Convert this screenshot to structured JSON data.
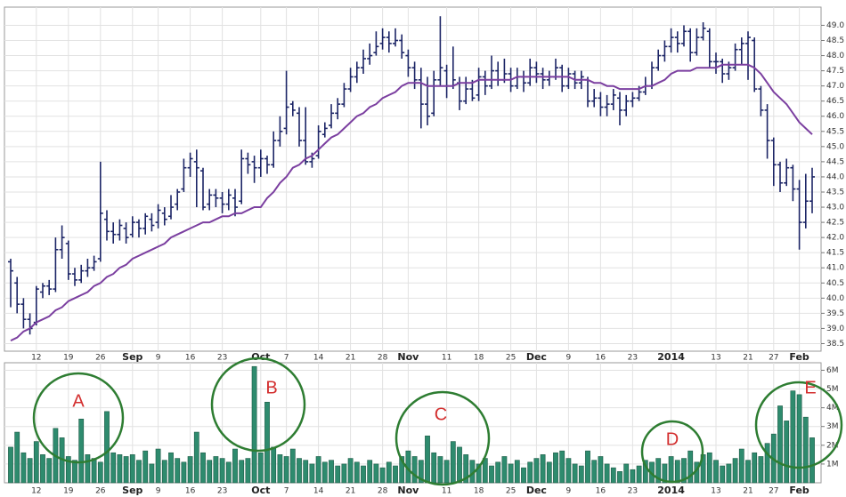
{
  "chart_data": [
    {
      "type": "ohlc",
      "color": "#1c2566",
      "categories": [
        null,
        null,
        null,
        null,
        "12",
        null,
        null,
        null,
        null,
        "19",
        null,
        null,
        null,
        null,
        "26",
        null,
        null,
        null,
        null,
        "Sep",
        null,
        null,
        null,
        "9",
        null,
        null,
        null,
        null,
        "16",
        null,
        null,
        null,
        null,
        "23",
        null,
        null,
        null,
        null,
        null,
        "Oct",
        null,
        null,
        null,
        "7",
        null,
        null,
        null,
        null,
        "14",
        null,
        null,
        null,
        null,
        "21",
        null,
        null,
        null,
        null,
        "28",
        null,
        null,
        null,
        "Nov",
        null,
        null,
        null,
        null,
        null,
        "11",
        null,
        null,
        null,
        null,
        "18",
        null,
        null,
        null,
        null,
        "25",
        null,
        null,
        null,
        "Dec",
        null,
        null,
        null,
        null,
        "9",
        null,
        null,
        null,
        null,
        "16",
        null,
        null,
        null,
        null,
        "23",
        null,
        null,
        null,
        null,
        null,
        "2014",
        null,
        null,
        null,
        null,
        null,
        null,
        "13",
        null,
        null,
        null,
        null,
        "21",
        null,
        null,
        null,
        "27",
        null,
        null,
        null,
        "Feb",
        null,
        null
      ],
      "ohlc": [
        [
          41.2,
          41.3,
          39.7,
          40.9
        ],
        [
          40.5,
          40.7,
          39.5,
          39.8
        ],
        [
          39.8,
          40.0,
          39.0,
          39.3
        ],
        [
          39.3,
          39.5,
          38.8,
          39.0
        ],
        [
          39.2,
          40.4,
          39.1,
          40.3
        ],
        [
          40.2,
          40.5,
          40.0,
          40.4
        ],
        [
          40.4,
          40.6,
          40.1,
          40.3
        ],
        [
          40.3,
          42.0,
          40.2,
          41.6
        ],
        [
          41.6,
          42.4,
          41.3,
          42.0
        ],
        [
          41.8,
          41.9,
          40.6,
          40.8
        ],
        [
          40.8,
          41.0,
          40.4,
          40.6
        ],
        [
          40.6,
          41.1,
          40.5,
          40.9
        ],
        [
          40.9,
          41.3,
          40.7,
          41.0
        ],
        [
          41.0,
          41.4,
          40.9,
          41.2
        ],
        [
          41.3,
          44.5,
          41.2,
          42.8
        ],
        [
          42.6,
          42.9,
          41.9,
          42.2
        ],
        [
          42.2,
          42.5,
          41.8,
          42.1
        ],
        [
          42.1,
          42.6,
          41.9,
          42.4
        ],
        [
          42.3,
          42.5,
          41.8,
          42.0
        ],
        [
          42.1,
          42.7,
          42.0,
          42.5
        ],
        [
          42.5,
          42.6,
          42.0,
          42.3
        ],
        [
          42.3,
          42.8,
          42.1,
          42.7
        ],
        [
          42.6,
          42.8,
          42.2,
          42.4
        ],
        [
          42.5,
          43.1,
          42.3,
          42.9
        ],
        [
          42.8,
          43.0,
          42.4,
          42.6
        ],
        [
          42.7,
          43.4,
          42.6,
          43.0
        ],
        [
          43.1,
          43.6,
          42.9,
          43.5
        ],
        [
          43.6,
          44.6,
          43.5,
          44.3
        ],
        [
          44.3,
          44.8,
          44.0,
          44.6
        ],
        [
          44.5,
          44.9,
          43.0,
          44.3
        ],
        [
          44.2,
          44.3,
          42.9,
          43.0
        ],
        [
          43.1,
          43.6,
          42.9,
          43.4
        ],
        [
          43.4,
          43.6,
          43.0,
          43.3
        ],
        [
          43.3,
          43.5,
          42.8,
          43.1
        ],
        [
          43.1,
          43.6,
          42.9,
          43.4
        ],
        [
          43.3,
          43.6,
          42.7,
          43.0
        ],
        [
          43.2,
          44.9,
          43.1,
          44.6
        ],
        [
          44.6,
          44.8,
          44.1,
          44.4
        ],
        [
          44.5,
          44.7,
          43.8,
          44.3
        ],
        [
          44.3,
          44.9,
          44.0,
          44.6
        ],
        [
          44.6,
          44.7,
          44.1,
          44.4
        ],
        [
          44.4,
          45.5,
          44.3,
          45.2
        ],
        [
          45.2,
          46.0,
          45.0,
          45.5
        ],
        [
          45.6,
          47.5,
          45.4,
          46.3
        ],
        [
          46.4,
          46.5,
          46.0,
          46.2
        ],
        [
          46.1,
          46.3,
          45.0,
          45.2
        ],
        [
          45.2,
          46.3,
          44.4,
          44.5
        ],
        [
          44.5,
          44.8,
          44.3,
          44.6
        ],
        [
          44.7,
          45.7,
          44.6,
          45.5
        ],
        [
          45.4,
          45.8,
          45.3,
          45.6
        ],
        [
          45.7,
          46.4,
          45.6,
          46.1
        ],
        [
          46.1,
          46.6,
          45.9,
          46.4
        ],
        [
          46.4,
          47.1,
          46.3,
          46.9
        ],
        [
          46.9,
          47.6,
          46.8,
          47.3
        ],
        [
          47.3,
          47.8,
          47.1,
          47.6
        ],
        [
          47.6,
          48.2,
          47.4,
          47.9
        ],
        [
          47.9,
          48.4,
          47.7,
          48.0
        ],
        [
          48.1,
          48.8,
          48.0,
          48.3
        ],
        [
          48.4,
          48.9,
          48.2,
          48.6
        ],
        [
          48.6,
          48.8,
          48.1,
          48.4
        ],
        [
          48.4,
          48.9,
          48.3,
          48.5
        ],
        [
          48.5,
          48.7,
          47.9,
          48.1
        ],
        [
          48.0,
          48.2,
          47.3,
          47.6
        ],
        [
          47.6,
          47.8,
          46.9,
          47.2
        ],
        [
          47.2,
          47.6,
          45.6,
          46.4
        ],
        [
          46.4,
          47.3,
          45.7,
          46.0
        ],
        [
          46.1,
          47.5,
          46.0,
          47.2
        ],
        [
          47.2,
          49.3,
          47.0,
          47.6
        ],
        [
          47.5,
          47.7,
          46.6,
          47.0
        ],
        [
          47.0,
          48.3,
          46.9,
          47.2
        ],
        [
          47.1,
          47.3,
          46.2,
          46.5
        ],
        [
          46.5,
          47.3,
          46.4,
          46.9
        ],
        [
          46.9,
          47.2,
          46.5,
          46.6
        ],
        [
          46.7,
          47.6,
          46.5,
          47.3
        ],
        [
          47.3,
          47.5,
          46.7,
          47.0
        ],
        [
          47.0,
          48.0,
          46.9,
          47.5
        ],
        [
          47.5,
          47.8,
          47.0,
          47.2
        ],
        [
          47.2,
          47.9,
          47.1,
          47.4
        ],
        [
          47.4,
          47.6,
          46.8,
          47.0
        ],
        [
          47.0,
          47.6,
          46.9,
          47.3
        ],
        [
          47.3,
          47.5,
          46.8,
          47.1
        ],
        [
          47.1,
          47.9,
          47.0,
          47.6
        ],
        [
          47.6,
          47.8,
          47.1,
          47.4
        ],
        [
          47.4,
          47.6,
          46.9,
          47.2
        ],
        [
          47.2,
          47.5,
          47.0,
          47.3
        ],
        [
          47.3,
          47.9,
          47.2,
          47.6
        ],
        [
          47.6,
          47.7,
          46.8,
          47.0
        ],
        [
          47.0,
          47.6,
          46.9,
          47.4
        ],
        [
          47.4,
          47.5,
          46.9,
          47.1
        ],
        [
          47.1,
          47.5,
          46.9,
          47.3
        ],
        [
          47.2,
          47.3,
          46.3,
          46.5
        ],
        [
          46.5,
          46.9,
          46.3,
          46.6
        ],
        [
          46.6,
          46.8,
          46.0,
          46.3
        ],
        [
          46.3,
          46.7,
          46.0,
          46.4
        ],
        [
          46.4,
          46.9,
          46.2,
          46.7
        ],
        [
          46.6,
          46.8,
          45.7,
          46.2
        ],
        [
          46.2,
          46.7,
          46.0,
          46.5
        ],
        [
          46.5,
          46.8,
          46.3,
          46.6
        ],
        [
          46.6,
          47.0,
          46.5,
          46.8
        ],
        [
          46.8,
          47.3,
          46.7,
          47.0
        ],
        [
          47.0,
          47.8,
          46.9,
          47.6
        ],
        [
          47.6,
          48.2,
          47.5,
          48.0
        ],
        [
          48.0,
          48.5,
          47.8,
          48.3
        ],
        [
          48.3,
          48.9,
          48.1,
          48.6
        ],
        [
          48.6,
          48.8,
          48.1,
          48.4
        ],
        [
          48.4,
          49.0,
          48.3,
          48.8
        ],
        [
          48.8,
          48.9,
          47.8,
          48.1
        ],
        [
          48.1,
          48.9,
          48.0,
          48.6
        ],
        [
          48.6,
          49.1,
          48.5,
          48.9
        ],
        [
          48.8,
          48.9,
          47.6,
          47.8
        ],
        [
          47.8,
          48.1,
          47.4,
          47.8
        ],
        [
          47.8,
          47.9,
          47.1,
          47.4
        ],
        [
          47.4,
          47.8,
          47.2,
          47.6
        ],
        [
          47.6,
          48.4,
          47.5,
          48.2
        ],
        [
          48.2,
          48.6,
          47.7,
          48.4
        ],
        [
          48.4,
          48.8,
          47.2,
          48.6
        ],
        [
          48.5,
          48.6,
          46.8,
          46.9
        ],
        [
          46.9,
          47.0,
          46.0,
          46.2
        ],
        [
          46.2,
          46.4,
          44.6,
          45.2
        ],
        [
          45.2,
          45.3,
          43.7,
          44.4
        ],
        [
          44.4,
          44.5,
          43.5,
          43.8
        ],
        [
          43.8,
          44.6,
          43.7,
          44.3
        ],
        [
          44.3,
          44.4,
          43.2,
          43.6
        ],
        [
          43.6,
          43.9,
          41.6,
          42.5
        ],
        [
          42.5,
          44.1,
          42.3,
          43.2
        ],
        [
          43.2,
          44.3,
          42.8,
          44.0
        ]
      ],
      "moving_average": {
        "color": "#7b3fa0",
        "values": [
          38.6,
          38.7,
          38.9,
          39.0,
          39.2,
          39.3,
          39.4,
          39.6,
          39.7,
          39.9,
          40.0,
          40.1,
          40.2,
          40.4,
          40.5,
          40.7,
          40.8,
          41.0,
          41.1,
          41.3,
          41.4,
          41.5,
          41.6,
          41.7,
          41.8,
          42.0,
          42.1,
          42.2,
          42.3,
          42.4,
          42.5,
          42.5,
          42.6,
          42.7,
          42.7,
          42.8,
          42.8,
          42.9,
          43.0,
          43.0,
          43.3,
          43.5,
          43.8,
          44.0,
          44.3,
          44.4,
          44.6,
          44.7,
          44.9,
          45.1,
          45.3,
          45.4,
          45.6,
          45.8,
          46.0,
          46.1,
          46.3,
          46.4,
          46.6,
          46.7,
          46.8,
          47.0,
          47.1,
          47.1,
          47.1,
          47.0,
          47.0,
          47.0,
          47.0,
          47.0,
          47.1,
          47.1,
          47.1,
          47.2,
          47.2,
          47.2,
          47.2,
          47.2,
          47.2,
          47.3,
          47.3,
          47.3,
          47.3,
          47.3,
          47.3,
          47.3,
          47.3,
          47.3,
          47.2,
          47.2,
          47.2,
          47.1,
          47.1,
          47.0,
          47.0,
          46.9,
          46.9,
          46.9,
          46.9,
          47.0,
          47.0,
          47.1,
          47.2,
          47.4,
          47.5,
          47.5,
          47.5,
          47.6,
          47.6,
          47.6,
          47.6,
          47.7,
          47.7,
          47.7,
          47.7,
          47.7,
          47.6,
          47.4,
          47.1,
          46.8,
          46.6,
          46.4,
          46.1,
          45.8,
          45.6,
          45.4
        ]
      },
      "ylim": [
        38.25,
        49.6
      ],
      "yticks": [
        38.5,
        {
          "value": 39,
          "label": "39.0"
        },
        39.5,
        {
          "value": 40,
          "label": "40.0"
        },
        40.5,
        {
          "value": 41,
          "label": "41.0"
        },
        41.5,
        {
          "value": 42,
          "label": "42.0"
        },
        42.5,
        {
          "value": 43,
          "label": "43.0"
        },
        43.5,
        {
          "value": 44,
          "label": "44.0"
        },
        44.5,
        {
          "value": 45,
          "label": "45.0"
        },
        45.5,
        {
          "value": 46,
          "label": "46.0"
        },
        46.5,
        {
          "value": 47,
          "label": "47.0"
        },
        47.5,
        {
          "value": 48,
          "label": "48.0"
        },
        48.5,
        {
          "value": 49,
          "label": "49.0"
        }
      ],
      "grid": true
    },
    {
      "type": "bar",
      "color": "#2e8b6e",
      "categories": [
        null,
        null,
        null,
        null,
        "12",
        null,
        null,
        null,
        null,
        "19",
        null,
        null,
        null,
        null,
        "26",
        null,
        null,
        null,
        null,
        "Sep",
        null,
        null,
        null,
        "9",
        null,
        null,
        null,
        null,
        "16",
        null,
        null,
        null,
        null,
        "23",
        null,
        null,
        null,
        null,
        null,
        "Oct",
        null,
        null,
        null,
        "7",
        null,
        null,
        null,
        null,
        "14",
        null,
        null,
        null,
        null,
        "21",
        null,
        null,
        null,
        null,
        "28",
        null,
        null,
        null,
        "Nov",
        null,
        null,
        null,
        null,
        null,
        "11",
        null,
        null,
        null,
        null,
        "18",
        null,
        null,
        null,
        null,
        "25",
        null,
        null,
        null,
        "Dec",
        null,
        null,
        null,
        null,
        "9",
        null,
        null,
        null,
        null,
        "16",
        null,
        null,
        null,
        null,
        "23",
        null,
        null,
        null,
        null,
        null,
        "2014",
        null,
        null,
        null,
        null,
        null,
        null,
        "13",
        null,
        null,
        null,
        null,
        "21",
        null,
        null,
        null,
        "27",
        null,
        null,
        null,
        "Feb",
        null,
        null
      ],
      "values": [
        1.9,
        2.7,
        1.6,
        1.3,
        2.2,
        1.5,
        1.3,
        2.9,
        2.4,
        1.4,
        1.2,
        3.4,
        1.5,
        1.3,
        1.1,
        3.8,
        1.6,
        1.5,
        1.4,
        1.5,
        1.2,
        1.7,
        1.0,
        1.8,
        1.2,
        1.6,
        1.3,
        1.1,
        1.4,
        2.7,
        1.6,
        1.2,
        1.4,
        1.3,
        1.1,
        1.8,
        1.2,
        1.3,
        6.2,
        1.6,
        4.3,
        1.9,
        1.5,
        1.4,
        1.8,
        1.3,
        1.2,
        1.0,
        1.4,
        1.1,
        1.2,
        0.9,
        1.0,
        1.3,
        1.1,
        0.9,
        1.2,
        1.0,
        0.8,
        1.1,
        0.9,
        1.4,
        1.7,
        1.4,
        1.2,
        2.5,
        1.6,
        1.4,
        1.2,
        2.2,
        1.9,
        1.5,
        1.2,
        1.0,
        1.3,
        0.9,
        1.1,
        1.4,
        1.0,
        1.2,
        0.8,
        1.1,
        1.3,
        1.5,
        1.1,
        1.6,
        1.7,
        1.3,
        1.0,
        0.9,
        1.7,
        1.2,
        1.4,
        1.0,
        0.8,
        0.6,
        1.0,
        0.7,
        0.9,
        1.2,
        1.1,
        1.3,
        1.0,
        1.4,
        1.2,
        1.3,
        1.7,
        1.1,
        1.5,
        1.6,
        1.2,
        0.9,
        1.0,
        1.3,
        1.8,
        1.2,
        1.6,
        1.4,
        2.1,
        2.6,
        4.1,
        3.3,
        4.9,
        4.7,
        3.5,
        2.4
      ],
      "ylim": [
        0,
        6.4
      ],
      "yticks": [
        {
          "value": 1,
          "label": "1M"
        },
        {
          "value": 2,
          "label": "2M"
        },
        {
          "value": 3,
          "label": "3M"
        },
        {
          "value": 4,
          "label": "4M"
        },
        {
          "value": 5,
          "label": "5M"
        },
        {
          "value": 6,
          "label": "6M"
        }
      ],
      "grid": true,
      "annotations": [
        "A",
        "B",
        "C",
        "D",
        "E"
      ]
    }
  ]
}
